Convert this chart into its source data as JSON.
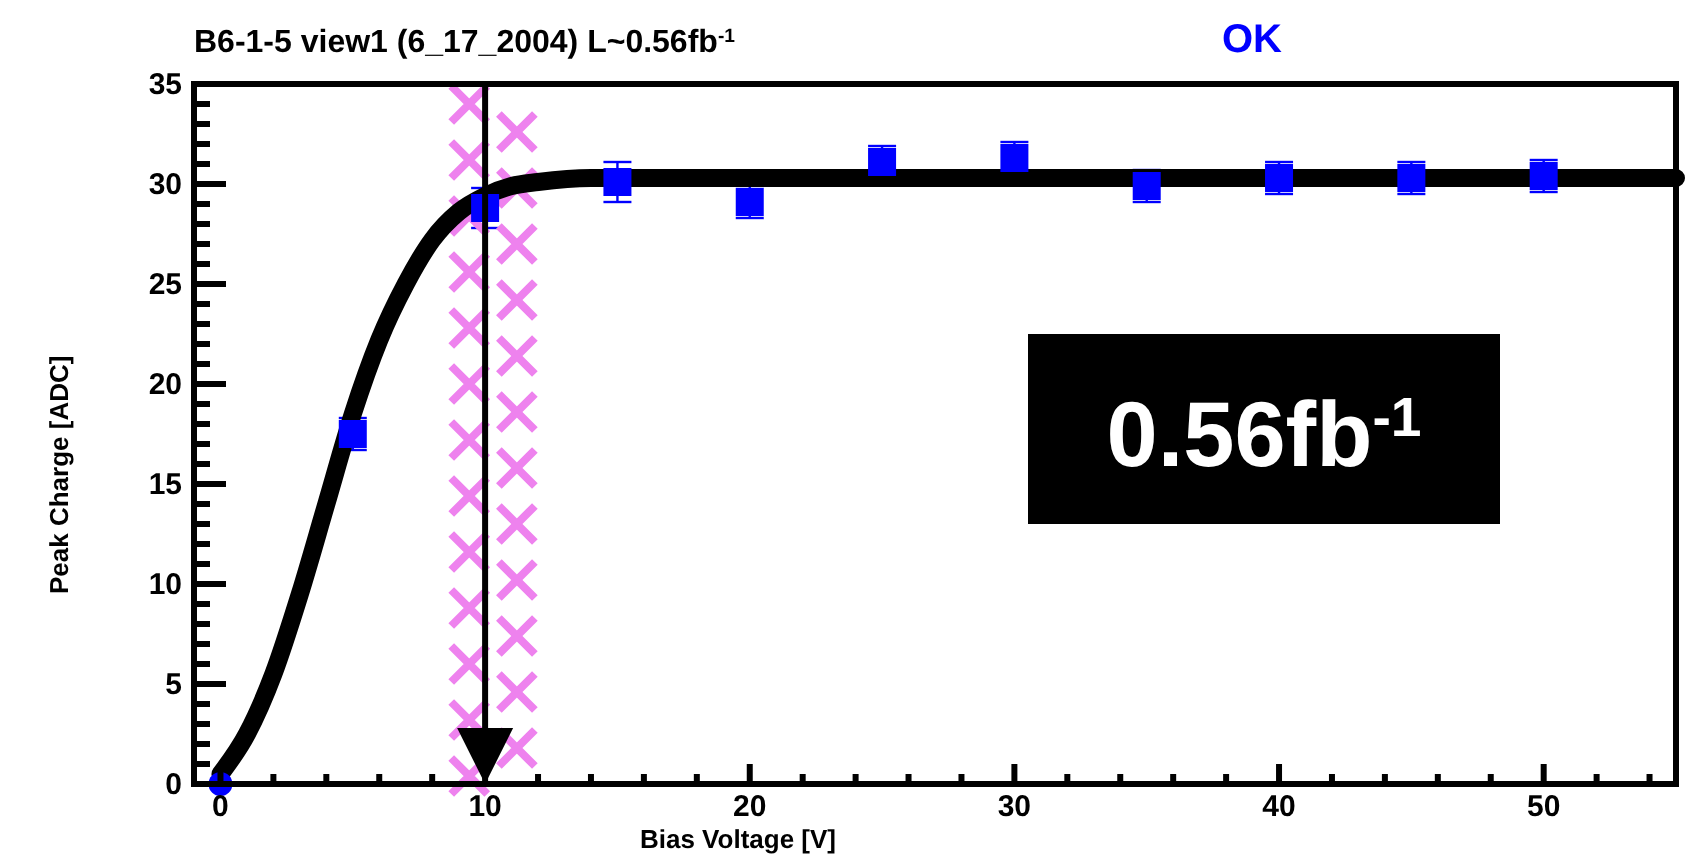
{
  "chart_data": {
    "type": "scatter",
    "title": "B6-1-5 view1 (6_17_2004) L~0.56fb$^{-1}$",
    "xlabel": "Bias Voltage [V]",
    "ylabel": "Peak Charge [ADC]",
    "annotations": [
      "OK",
      "0.56fb$^{-1}$"
    ],
    "xlim": [
      -1,
      55
    ],
    "ylim": [
      0,
      35
    ],
    "xticks": [
      0,
      {
        "value": 2,
        "label": null
      },
      {
        "value": 4,
        "label": null
      },
      {
        "value": 6,
        "label": null
      },
      {
        "value": 8,
        "label": null
      },
      10,
      {
        "value": 12,
        "label": null
      },
      {
        "value": 14,
        "label": null
      },
      {
        "value": 16,
        "label": null
      },
      {
        "value": 18,
        "label": null
      },
      20,
      {
        "value": 22,
        "label": null
      },
      {
        "value": 24,
        "label": null
      },
      {
        "value": 26,
        "label": null
      },
      {
        "value": 28,
        "label": null
      },
      30,
      {
        "value": 32,
        "label": null
      },
      {
        "value": 34,
        "label": null
      },
      {
        "value": 36,
        "label": null
      },
      {
        "value": 38,
        "label": null
      },
      40,
      {
        "value": 42,
        "label": null
      },
      {
        "value": 44,
        "label": null
      },
      {
        "value": 46,
        "label": null
      },
      {
        "value": 48,
        "label": null
      },
      50,
      {
        "value": 52,
        "label": null
      },
      {
        "value": 54,
        "label": null
      }
    ],
    "yticks": [
      0,
      {
        "value": 1,
        "label": null
      },
      {
        "value": 2,
        "label": null
      },
      {
        "value": 3,
        "label": null
      },
      {
        "value": 4,
        "label": null
      },
      5,
      {
        "value": 6,
        "label": null
      },
      {
        "value": 7,
        "label": null
      },
      {
        "value": 8,
        "label": null
      },
      {
        "value": 9,
        "label": null
      },
      10,
      {
        "value": 11,
        "label": null
      },
      {
        "value": 12,
        "label": null
      },
      {
        "value": 13,
        "label": null
      },
      {
        "value": 14,
        "label": null
      },
      15,
      {
        "value": 16,
        "label": null
      },
      {
        "value": 17,
        "label": null
      },
      {
        "value": 18,
        "label": null
      },
      {
        "value": 19,
        "label": null
      },
      20,
      {
        "value": 21,
        "label": null
      },
      {
        "value": 22,
        "label": null
      },
      {
        "value": 23,
        "label": null
      },
      {
        "value": 24,
        "label": null
      },
      25,
      {
        "value": 26,
        "label": null
      },
      {
        "value": 27,
        "label": null
      },
      {
        "value": 28,
        "label": null
      },
      {
        "value": 29,
        "label": null
      },
      30,
      {
        "value": 31,
        "label": null
      },
      {
        "value": 32,
        "label": null
      },
      {
        "value": 33,
        "label": null
      },
      {
        "value": 34,
        "label": null
      },
      35
    ],
    "grid": false,
    "ref_lines": [
      {
        "axis": "x",
        "value": 10,
        "color": "#000000"
      }
    ],
    "series": [
      {
        "color": "#ee82ee",
        "marker": "cross",
        "x": [
          9.4,
          9.4,
          9.4,
          9.4,
          9.4,
          9.4,
          9.4,
          9.4,
          9.4,
          9.4,
          9.4,
          9.4,
          9.4,
          11.2,
          11.2,
          11.2,
          11.2,
          11.2,
          11.2,
          11.2,
          11.2,
          11.2,
          11.2,
          11.2,
          11.2
        ],
        "values": [
          34,
          31.2,
          28.4,
          25.6,
          22.8,
          20,
          17.2,
          14.4,
          11.6,
          8.8,
          6,
          3.2,
          0.4,
          32.6,
          29.8,
          27,
          24.2,
          21.4,
          18.6,
          15.8,
          13,
          10.2,
          7.4,
          4.6,
          1.8
        ]
      },
      {
        "type": "line",
        "color": "#000000",
        "x": [
          0,
          1,
          2,
          3,
          4,
          5,
          6,
          7,
          8,
          9,
          10,
          11,
          12,
          14,
          16,
          55
        ],
        "values": [
          0.5,
          2.5,
          5.5,
          9.5,
          14,
          18.5,
          22.2,
          25,
          27.2,
          28.6,
          29.4,
          29.9,
          30.1,
          30.3,
          30.3,
          30.3
        ]
      },
      {
        "color": "#0000ff",
        "marker": "square",
        "x": [
          5,
          10,
          15,
          20,
          25,
          30,
          35,
          40,
          45,
          50
        ],
        "values": [
          17.5,
          28.8,
          30.1,
          29.1,
          31.1,
          31.3,
          29.9,
          30.3,
          30.3,
          30.4
        ],
        "errors": [
          0.8,
          1,
          1,
          0.8,
          0.8,
          0.8,
          0.8,
          0.8,
          0.8,
          0.8
        ]
      },
      {
        "color": "#0000ff",
        "marker": "circle",
        "x": [
          0
        ],
        "values": [
          0
        ]
      }
    ]
  }
}
